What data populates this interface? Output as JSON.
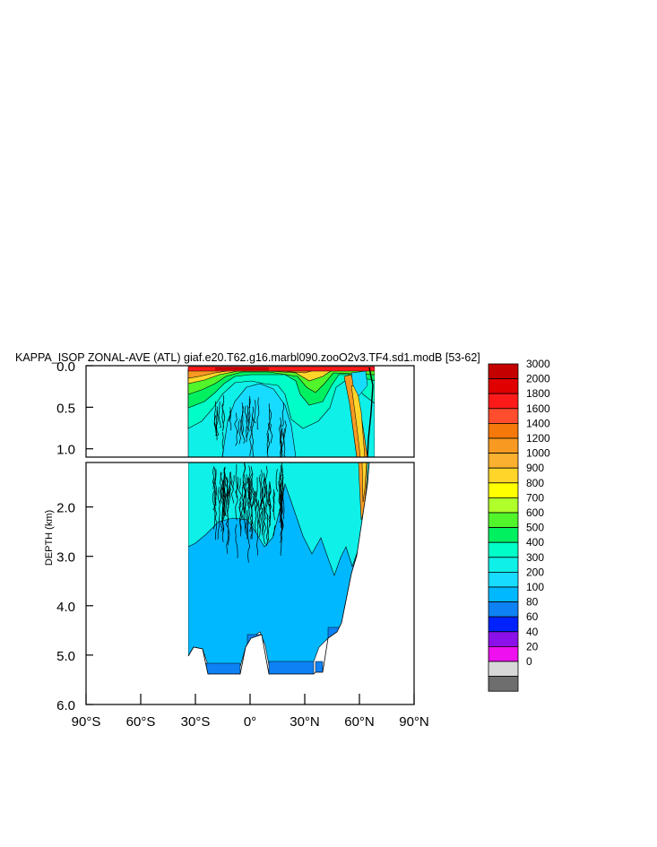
{
  "chart_data": {
    "type": "heatmap",
    "title": "KAPPA_ISOP ZONAL-AVE (ATL) giaf.e20.T62.g16.marbl090.zooO2v3.TF4.sd1.modB [53-62]",
    "ylabel": "DEPTH (km)",
    "upper_panel": {
      "ylim": [
        0.0,
        1.1
      ],
      "y_ticks": [
        {
          "value": 0.0,
          "label": "0.0"
        },
        {
          "value": 0.5,
          "label": "0.5"
        },
        {
          "value": 1.0,
          "label": "1.0"
        }
      ]
    },
    "lower_panel": {
      "ylim": [
        1.1,
        6.0
      ],
      "y_ticks": [
        {
          "value": 2.0,
          "label": "2.0"
        },
        {
          "value": 3.0,
          "label": "3.0"
        },
        {
          "value": 4.0,
          "label": "4.0"
        },
        {
          "value": 5.0,
          "label": "5.0"
        },
        {
          "value": 6.0,
          "label": "6.0"
        }
      ]
    },
    "xlim": [
      -90,
      90
    ],
    "x_ticks": [
      {
        "value": -90,
        "label": "90°S"
      },
      {
        "value": -60,
        "label": "60°S"
      },
      {
        "value": -30,
        "label": "30°S"
      },
      {
        "value": 0,
        "label": "0°"
      },
      {
        "value": 30,
        "label": "30°N"
      },
      {
        "value": 60,
        "label": "60°N"
      },
      {
        "value": 90,
        "label": "90°N"
      }
    ],
    "colorbar": {
      "labels": [
        "3000",
        "2000",
        "1800",
        "1600",
        "1400",
        "1200",
        "1000",
        "900",
        "800",
        "700",
        "600",
        "500",
        "400",
        "300",
        "200",
        "100",
        "80",
        "60",
        "40",
        "20",
        "0"
      ],
      "colors": [
        "#c40000",
        "#e10000",
        "#ff1a1a",
        "#ff4d2e",
        "#f5780a",
        "#f89a22",
        "#fbb030",
        "#ffd52a",
        "#ffff00",
        "#b0ff2a",
        "#52f52a",
        "#00f060",
        "#00ffc8",
        "#0ff0e8",
        "#18dcff",
        "#00b8ff",
        "#0e82f4",
        "#0022ff",
        "#8c10e8",
        "#ee10ee",
        "#d8d8d8",
        "#6e6e6e"
      ]
    },
    "regions": {
      "ocean_extent_lon": [
        -34,
        68
      ],
      "deep_300_400": {
        "lon": [
          -34,
          55
        ],
        "depth": [
          2.8,
          5.3
        ]
      },
      "bottom_200_300": {
        "lon": [
          -24,
          38
        ],
        "depth": [
          4.8,
          5.4
        ]
      },
      "mid_400_500": {
        "lon": [
          -34,
          63
        ],
        "depth": [
          0.1,
          3.0
        ]
      },
      "surface_max_band": {
        "lon": [
          -30,
          30
        ],
        "depth": [
          0.0,
          0.05
        ],
        "value_range": [
          1600,
          3000
        ]
      },
      "northern_boundary_current": {
        "lon": [
          58,
          68
        ],
        "depth": [
          0.0,
          2.0
        ],
        "value_range": [
          500,
          1400
        ]
      }
    }
  }
}
